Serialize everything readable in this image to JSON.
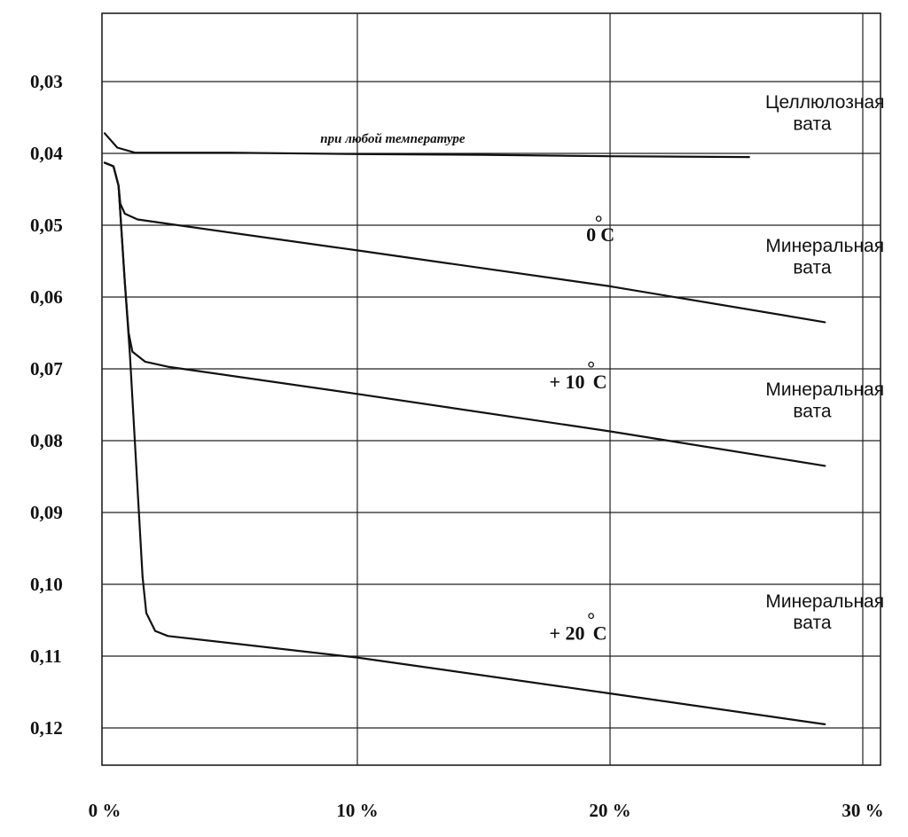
{
  "chart_data": {
    "type": "line",
    "title": "",
    "xlabel": "",
    "ylabel": "",
    "xlim": [
      0,
      31
    ],
    "ylim": [
      0.02,
      0.12
    ],
    "y_inverted": true,
    "grid": true,
    "x_ticks": [
      {
        "value": 0,
        "label": "0 %"
      },
      {
        "value": 10,
        "label": "10 %"
      },
      {
        "value": 20,
        "label": "20 %"
      },
      {
        "value": 30,
        "label": "30 %"
      }
    ],
    "y_ticks": [
      {
        "value": 0.03,
        "label": "0,03"
      },
      {
        "value": 0.04,
        "label": "0,04"
      },
      {
        "value": 0.05,
        "label": "0,05"
      },
      {
        "value": 0.06,
        "label": "0,06"
      },
      {
        "value": 0.07,
        "label": "0,07"
      },
      {
        "value": 0.08,
        "label": "0,08"
      },
      {
        "value": 0.09,
        "label": "0,09"
      },
      {
        "value": 0.1,
        "label": "0,10"
      },
      {
        "value": 0.11,
        "label": "0,11"
      },
      {
        "value": 0.12,
        "label": "0,12"
      }
    ],
    "series": [
      {
        "x": [
          0,
          0.5,
          1.2,
          5,
          10,
          15,
          20,
          25.5
        ],
        "y": [
          0.0372,
          0.0392,
          0.0399,
          0.0399,
          0.0401,
          0.0402,
          0.0404,
          0.0405
        ]
      },
      {
        "x": [
          0,
          0.35,
          0.55,
          0.62,
          0.8,
          1.3,
          2.5,
          10,
          20,
          28.5
        ],
        "y": [
          0.0413,
          0.0418,
          0.0445,
          0.047,
          0.0484,
          0.0492,
          0.0498,
          0.0535,
          0.0585,
          0.0635
        ]
      },
      {
        "x": [
          0,
          0.35,
          0.55,
          0.8,
          0.95,
          1.1,
          1.6,
          2.5,
          10,
          20,
          28.5
        ],
        "y": [
          0.0413,
          0.0418,
          0.0445,
          0.058,
          0.065,
          0.0676,
          0.069,
          0.0697,
          0.0735,
          0.0787,
          0.0835
        ]
      },
      {
        "x": [
          0,
          0.35,
          0.55,
          0.8,
          1.0,
          1.5,
          1.65,
          2.0,
          2.5,
          10,
          20,
          28.5
        ],
        "y": [
          0.0413,
          0.0418,
          0.0445,
          0.058,
          0.068,
          0.099,
          0.104,
          0.1065,
          0.1072,
          0.1102,
          0.1152,
          0.1195
        ]
      }
    ],
    "annotations": [
      {
        "text": "Целлюлозная",
        "x": 28.5,
        "y": 0.0337
      },
      {
        "text": "вата",
        "x": 28.0,
        "y": 0.0367
      },
      {
        "text": "при любой температуре",
        "x": 11.4,
        "y": 0.0385
      },
      {
        "text": "0",
        "x": 19.25,
        "y": 0.0522
      },
      {
        "text": "°",
        "x": 19.55,
        "y": 0.0505
      },
      {
        "text": "C",
        "x": 19.9,
        "y": 0.0522
      },
      {
        "text": "Минеральная",
        "x": 28.5,
        "y": 0.0537
      },
      {
        "text": "вата",
        "x": 28.0,
        "y": 0.0567
      },
      {
        "text": "+ 10",
        "x": 18.3,
        "y": 0.0727
      },
      {
        "text": "°",
        "x": 19.25,
        "y": 0.0708
      },
      {
        "text": "C",
        "x": 19.6,
        "y": 0.0727
      },
      {
        "text": "Минеральная",
        "x": 28.5,
        "y": 0.0737
      },
      {
        "text": "вата",
        "x": 28.0,
        "y": 0.0767
      },
      {
        "text": "+ 20",
        "x": 18.3,
        "y": 0.1077
      },
      {
        "text": "°",
        "x": 19.25,
        "y": 0.1058
      },
      {
        "text": "C",
        "x": 19.6,
        "y": 0.1077
      },
      {
        "text": "Минеральная",
        "x": 28.5,
        "y": 0.1032
      },
      {
        "text": "вата",
        "x": 28.0,
        "y": 0.1062
      }
    ]
  }
}
